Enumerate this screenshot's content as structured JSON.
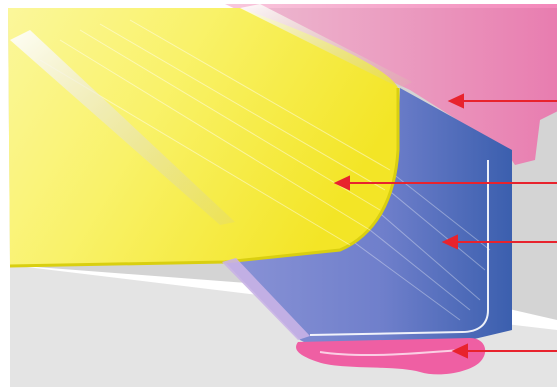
{
  "diagram": {
    "kind": "cutaway illustration of a layered cove / corner profile",
    "colors": {
      "backdrop": "#d4d4d4",
      "backdrop_light": "#e6e6e6",
      "top_layer": "#f6ee3a",
      "top_layer_edge": "#d9cf10",
      "middle_layer": "#3b5fae",
      "middle_layer_light": "#8a93d6",
      "bottom_layer": "#ef5fa3",
      "bottom_layer_light": "#f6b6d2",
      "pointer": "#e8232d"
    },
    "pointers": [
      {
        "target": "pink-top-edge-layer"
      },
      {
        "target": "yellow-top-layer"
      },
      {
        "target": "blue-middle-layer"
      },
      {
        "target": "pink-base-layer"
      }
    ]
  }
}
